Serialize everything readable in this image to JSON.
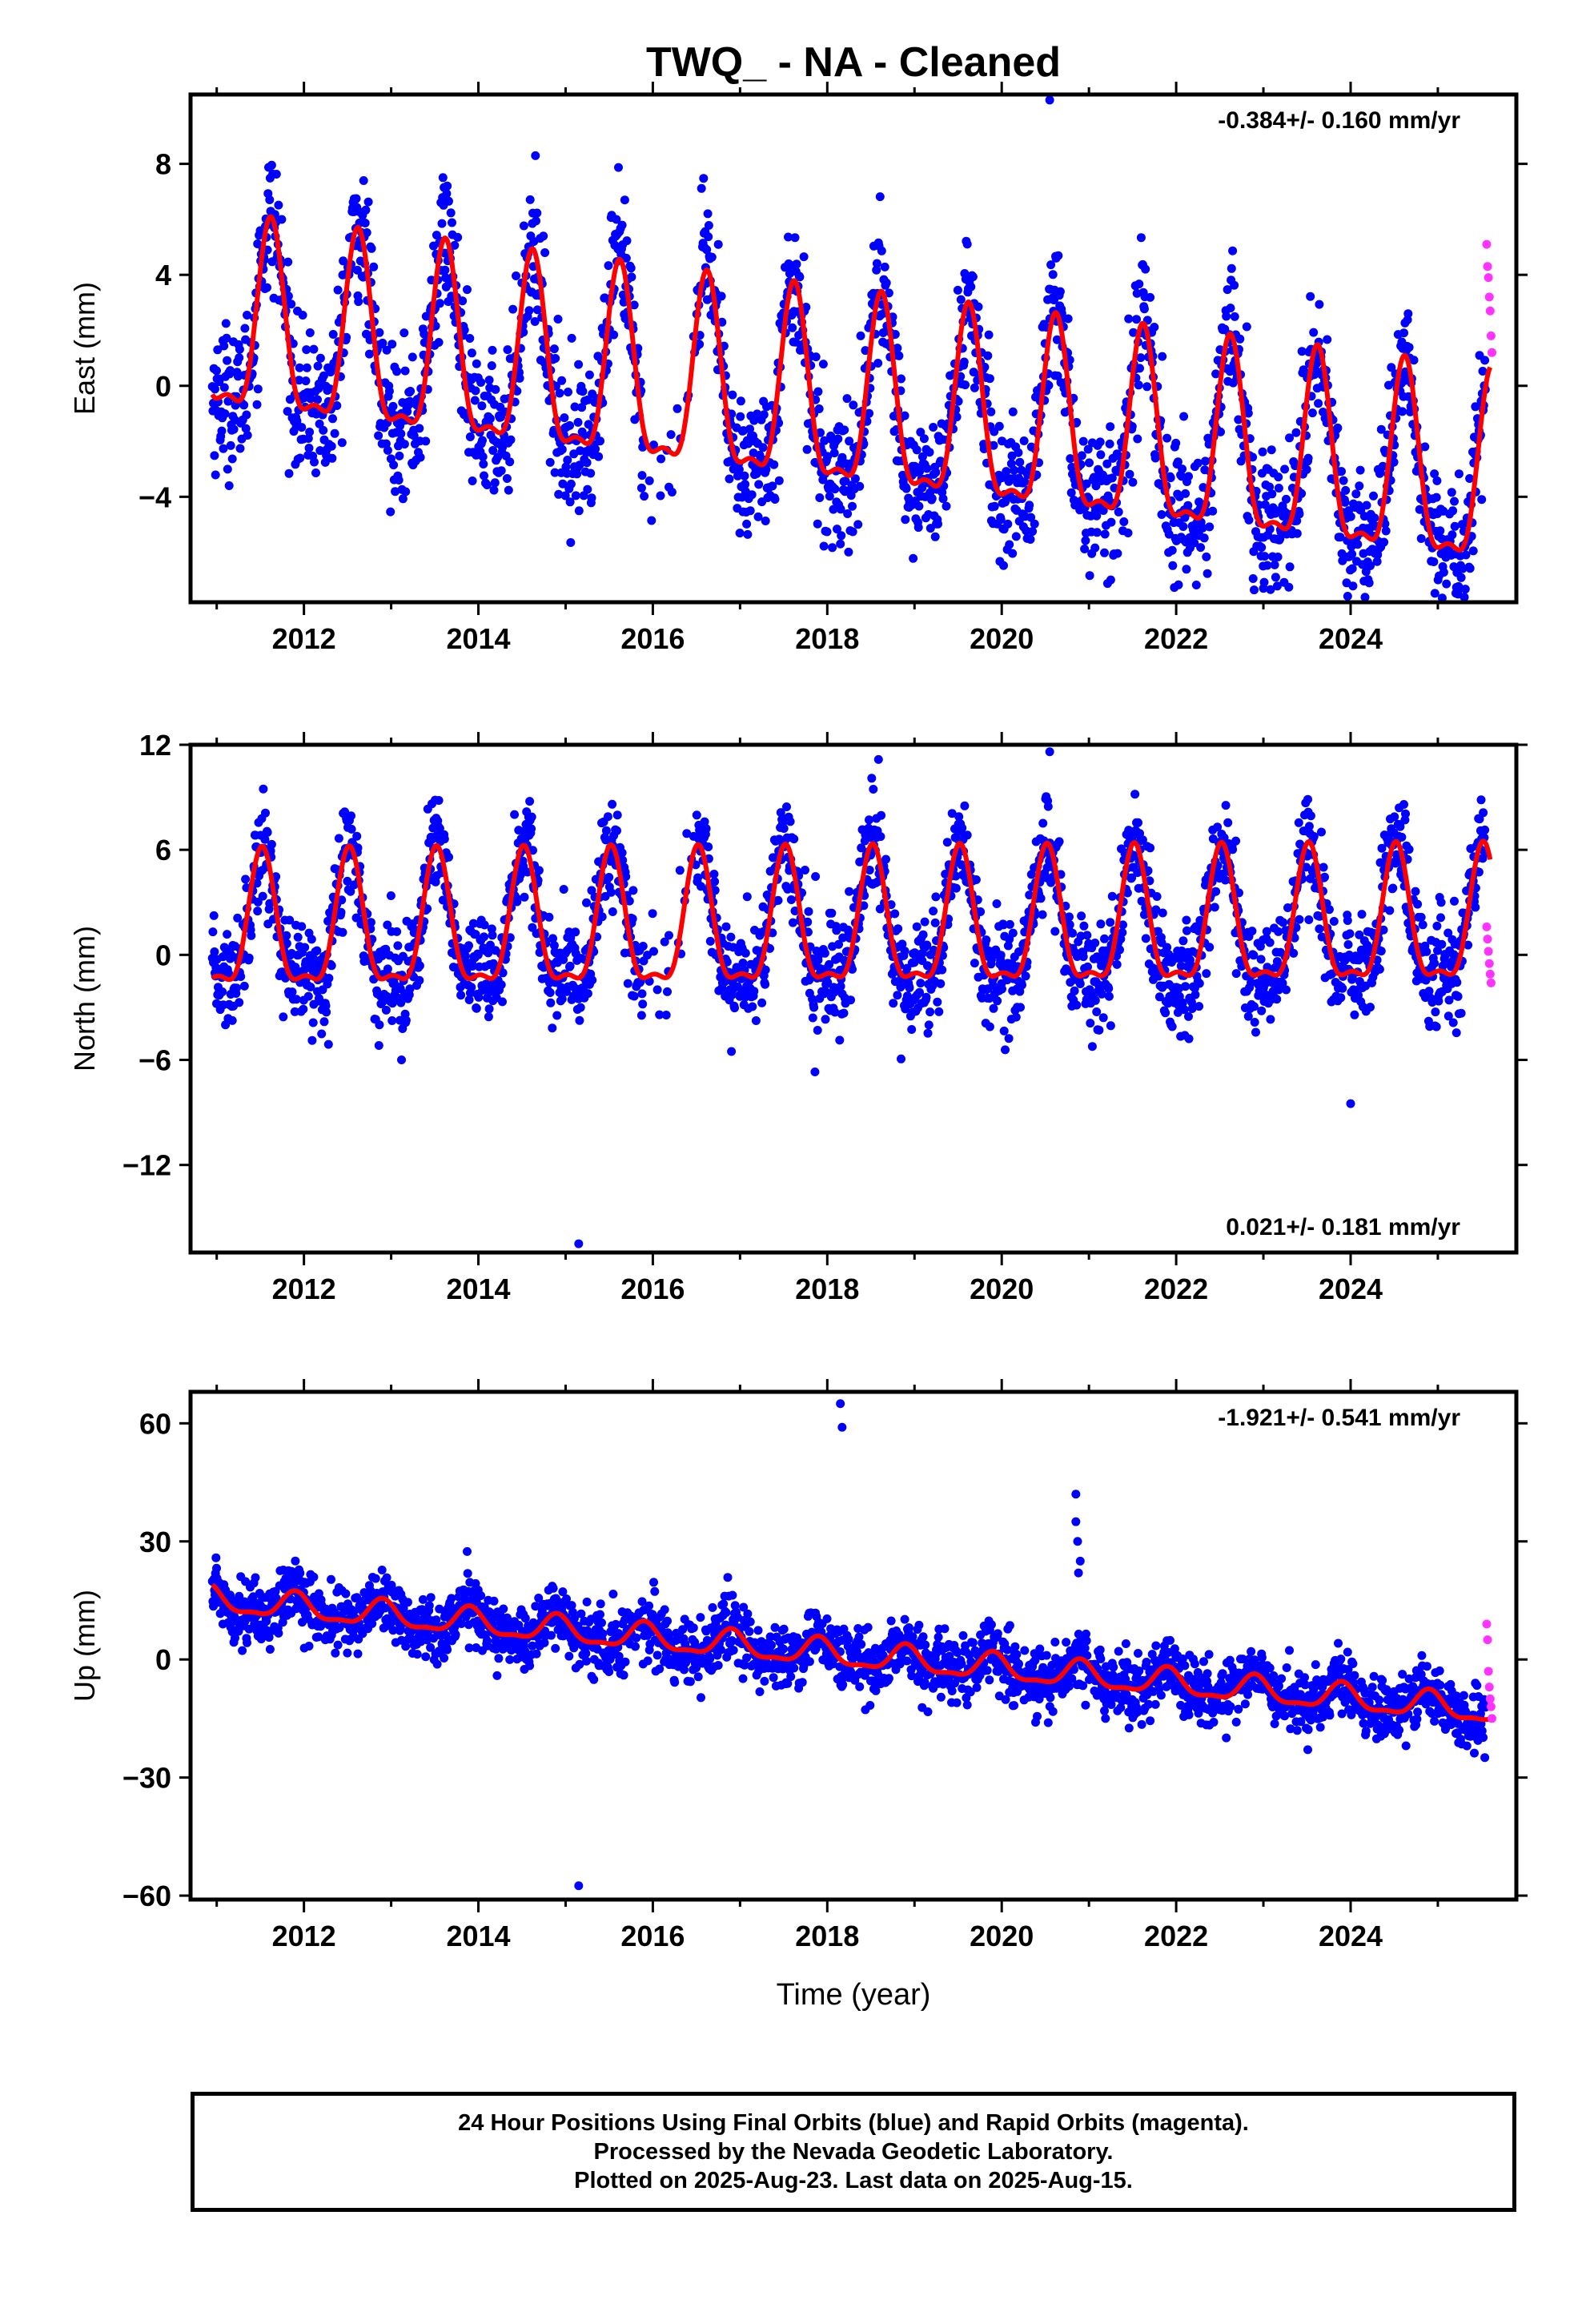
{
  "title": "TWQ_  - NA - Cleaned",
  "colors": {
    "final_points": "#0000ff",
    "rapid_points": "#ff33ff",
    "model_line": "#ff0000",
    "frame": "#000000"
  },
  "chart_data": [
    {
      "type": "scatter",
      "panel": "east",
      "ylabel": "East (mm)",
      "xlabel": "",
      "xlim": [
        2010.7,
        2025.9
      ],
      "ylim": [
        -7.8,
        10.5
      ],
      "y_ticks": [
        8,
        4,
        0,
        -4
      ],
      "y_tick_labels": [
        "8",
        "4",
        "0",
        "−4"
      ],
      "x_ticks": [
        2012,
        2014,
        2016,
        2018,
        2020,
        2022,
        2024
      ],
      "x_tick_labels": [
        "2012",
        "2014",
        "2016",
        "2018",
        "2020",
        "2022",
        "2024"
      ],
      "rate_label": "-0.384+/- 0.160 mm/yr",
      "rate_label_position": "top-right",
      "model": {
        "offset": 1.9,
        "trend": -0.384,
        "annual_amp": 3.3,
        "annual_phase_peak": 0.62,
        "start": 2010.95,
        "end": 2025.6
      },
      "outliers": [
        [
          2020.55,
          10.3
        ],
        [
          2018.15,
          -5.7
        ],
        [
          2023.0,
          -7.3
        ]
      ],
      "series": [
        {
          "name": "Final Orbits (blue)",
          "start": 2010.95,
          "end": 2025.55,
          "scatter_sigma": 1.3
        },
        {
          "name": "Rapid Orbits (magenta)",
          "x": [
            2025.56,
            2025.57,
            2025.58,
            2025.59,
            2025.6,
            2025.61,
            2025.62
          ],
          "y": [
            5.1,
            4.3,
            3.9,
            3.2,
            2.7,
            1.8,
            1.2
          ]
        }
      ]
    },
    {
      "type": "scatter",
      "panel": "north",
      "ylabel": "North (mm)",
      "xlabel": "",
      "xlim": [
        2010.7,
        2025.9
      ],
      "ylim": [
        -17,
        12
      ],
      "y_ticks": [
        12,
        6,
        0,
        -6,
        -12
      ],
      "y_tick_labels": [
        "12",
        "6",
        "0",
        "−6",
        "−12"
      ],
      "x_ticks": [
        2012,
        2014,
        2016,
        2018,
        2020,
        2022,
        2024
      ],
      "x_tick_labels": [
        "2012",
        "2014",
        "2016",
        "2018",
        "2020",
        "2022",
        "2024"
      ],
      "rate_label": "0.021+/- 0.181 mm/yr",
      "rate_label_position": "bottom-right",
      "model": {
        "offset": 1.2,
        "trend": 0.021,
        "annual_amp": 3.7,
        "annual_phase_peak": 0.52,
        "start": 2010.95,
        "end": 2025.6
      },
      "outliers": [
        [
          2015.15,
          -16.5
        ],
        [
          2020.55,
          11.6
        ],
        [
          2024.0,
          -8.5
        ]
      ],
      "series": [
        {
          "name": "Final Orbits (blue)",
          "start": 2010.95,
          "end": 2025.55,
          "scatter_sigma": 1.5
        },
        {
          "name": "Rapid Orbits (magenta)",
          "x": [
            2025.56,
            2025.57,
            2025.58,
            2025.59,
            2025.6,
            2025.61
          ],
          "y": [
            1.6,
            0.9,
            0.2,
            -0.5,
            -1.1,
            -1.6
          ]
        }
      ]
    },
    {
      "type": "scatter",
      "panel": "up",
      "ylabel": "Up (mm)",
      "xlabel": "Time (year)",
      "xlim": [
        2010.7,
        2025.9
      ],
      "ylim": [
        -61,
        68
      ],
      "y_ticks": [
        60,
        30,
        0,
        -30,
        -60
      ],
      "y_tick_labels": [
        "60",
        "30",
        "0",
        "−30",
        "−60"
      ],
      "x_ticks": [
        2012,
        2014,
        2016,
        2018,
        2020,
        2022,
        2024
      ],
      "x_tick_labels": [
        "2012",
        "2014",
        "2016",
        "2018",
        "2020",
        "2022",
        "2024"
      ],
      "rate_label": "-1.921+/- 0.541 mm/yr",
      "rate_label_position": "top-right",
      "model": {
        "offset": 15.0,
        "trend": -1.921,
        "annual_amp": 3.2,
        "annual_phase_peak": 0.9,
        "start": 2010.95,
        "end": 2025.6
      },
      "outliers": [
        [
          2018.15,
          65.0
        ],
        [
          2018.17,
          59.0
        ],
        [
          2015.15,
          -57.5
        ],
        [
          2020.85,
          42.0
        ],
        [
          2020.85,
          35.0
        ],
        [
          2020.87,
          30.0
        ],
        [
          2020.9,
          25.0
        ],
        [
          2020.88,
          22.0
        ]
      ],
      "series": [
        {
          "name": "Final Orbits (blue)",
          "start": 2010.95,
          "end": 2025.55,
          "scatter_sigma": 4.0
        },
        {
          "name": "Rapid Orbits (magenta)",
          "x": [
            2025.56,
            2025.57,
            2025.58,
            2025.59,
            2025.6,
            2025.61,
            2025.62
          ],
          "y": [
            9.0,
            5.0,
            -3.0,
            -7.0,
            -10.0,
            -12.0,
            -15.0
          ]
        }
      ]
    }
  ],
  "footer": {
    "line1": "24 Hour Positions Using Final Orbits (blue) and Rapid Orbits (magenta).",
    "line2": "Processed by the Nevada Geodetic Laboratory.",
    "line3": "Plotted on 2025-Aug-23. Last data on 2025-Aug-15."
  }
}
